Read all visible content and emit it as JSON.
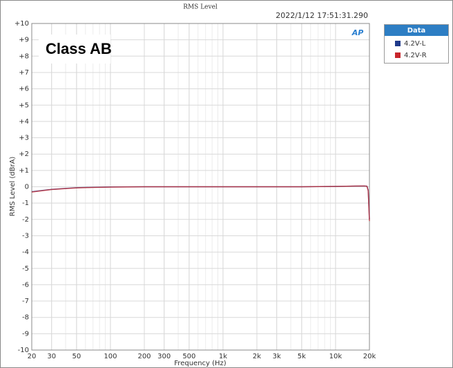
{
  "chart_data": {
    "type": "line",
    "title": "RMS Level",
    "timestamp": "2022/1/12 17:51:31.290",
    "annotation": "Class AB",
    "logo": "AP",
    "x_label": "Frequency (Hz)",
    "y_label": "RMS Level (dBrA)",
    "legend_title": "Data",
    "x_scale": "log",
    "grid": true,
    "x": [
      20,
      25,
      30,
      40,
      50,
      70,
      100,
      200,
      500,
      1000,
      2000,
      5000,
      10000,
      15000,
      18000,
      19000,
      19500,
      20000
    ],
    "series": [
      {
        "name": "4.2V-L",
        "color": "#1f3a8a",
        "values": [
          -0.3,
          -0.22,
          -0.16,
          -0.1,
          -0.06,
          -0.03,
          -0.01,
          0,
          0,
          0,
          0,
          0,
          0.02,
          0.04,
          0.05,
          0.04,
          -0.2,
          -2
        ]
      },
      {
        "name": "4.2V-R",
        "color": "#c8262c",
        "values": [
          -0.32,
          -0.24,
          -0.17,
          -0.11,
          -0.07,
          -0.04,
          -0.02,
          0,
          0,
          0,
          0,
          0,
          0.02,
          0.04,
          0.05,
          0.03,
          -0.25,
          -2.1
        ]
      }
    ],
    "xlim": [
      20,
      20000
    ],
    "ylim": [
      -10,
      10
    ],
    "xticks": [
      20,
      30,
      50,
      100,
      200,
      300,
      500,
      {
        "value": 1000,
        "label": "1k"
      },
      {
        "value": 2000,
        "label": "2k"
      },
      {
        "value": 3000,
        "label": "3k"
      },
      {
        "value": 5000,
        "label": "5k"
      },
      {
        "value": 10000,
        "label": "10k"
      },
      {
        "value": 20000,
        "label": "20k"
      }
    ],
    "yticks": [
      {
        "value": 10,
        "label": "+10"
      },
      {
        "value": 9,
        "label": "+9"
      },
      {
        "value": 8,
        "label": "+8"
      },
      {
        "value": 7,
        "label": "+7"
      },
      {
        "value": 6,
        "label": "+6"
      },
      {
        "value": 5,
        "label": "+5"
      },
      {
        "value": 4,
        "label": "+4"
      },
      {
        "value": 3,
        "label": "+3"
      },
      {
        "value": 2,
        "label": "+2"
      },
      {
        "value": 1,
        "label": "+1"
      },
      0,
      -1,
      -2,
      -3,
      -4,
      -5,
      -6,
      -7,
      -8,
      -9,
      -10
    ]
  }
}
